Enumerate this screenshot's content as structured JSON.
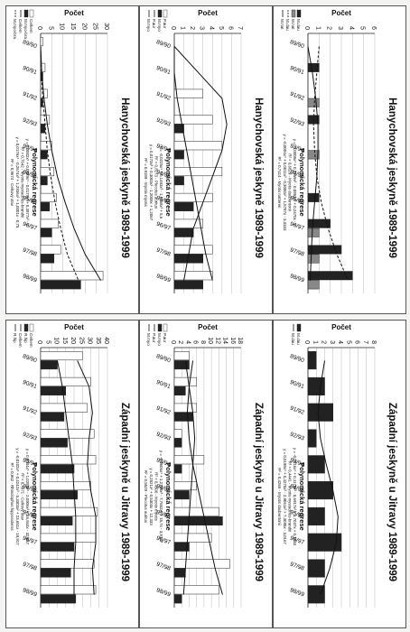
{
  "chart_data": [
    {
      "id": "p1",
      "type": "bar",
      "title": "Hanychovská jeskyně 1989-1999",
      "ylabel": "Počet",
      "ylim": [
        0,
        30
      ],
      "yticks": [
        "0",
        "5",
        "10",
        "15",
        "20",
        "25",
        "30"
      ],
      "categories": [
        "89/90",
        "90/91",
        "91/92",
        "92/93",
        "93/94",
        "94/95",
        "95/96",
        "96/97",
        "97/98",
        "98/99"
      ],
      "series": [
        {
          "name": "Celkem",
          "style": "white",
          "values": [
            1,
            2,
            3,
            4,
            5,
            6,
            7,
            8,
            9,
            28
          ]
        },
        {
          "name": "M.myo-bra",
          "style": "black",
          "values": [
            0,
            1,
            1,
            2,
            3,
            3,
            4,
            5,
            6,
            18
          ]
        }
      ],
      "curves": [
        {
          "name": "Celkem",
          "dash": false,
          "values": [
            0,
            0.5,
            1.5,
            3,
            5,
            7.5,
            11,
            15,
            20,
            27
          ]
        },
        {
          "name": "M.myo-bra",
          "dash": true,
          "values": [
            0,
            0.3,
            1,
            2,
            3,
            4.5,
            6.5,
            9,
            12,
            17
          ]
        }
      ],
      "reg_title": "Polynomická regrese",
      "reg_lines": [
        "y = 0,0002x⁵ + 0,0029x⁴ - 0,0179x³ + 0,3877x² - 1",
        "R² = 0,7642 - Myotis mystacinus-brandtii",
        "y = 0,0176x⁴ - 0,2674x³ + 1,2836x² + 1,0001x - 0,75",
        "R² = 0,9674 - Celkový stav"
      ]
    },
    {
      "id": "p2",
      "type": "bar",
      "title": "Hanychovská jeskyně 1989-1999",
      "ylabel": "Počet",
      "ylim": [
        0,
        7
      ],
      "yticks": [
        "0",
        "1",
        "2",
        "3",
        "4",
        "5",
        "6",
        "7"
      ],
      "categories": [
        "89/90",
        "90/91",
        "91/92",
        "92/93",
        "93/94",
        "94/95",
        "95/96",
        "96/97",
        "97/98",
        "98/99"
      ],
      "series": [
        {
          "name": "P.aur",
          "style": "white",
          "values": [
            0,
            0,
            3,
            4,
            5,
            5,
            4,
            3,
            4,
            4
          ]
        },
        {
          "name": "M.myo",
          "style": "black",
          "values": [
            0,
            0,
            0,
            1,
            1,
            1,
            2,
            2,
            3,
            3
          ]
        }
      ],
      "curves": [
        {
          "name": "P.aur",
          "dash": false,
          "values": [
            0,
            2.5,
            5,
            5.5,
            5,
            4,
            3,
            2,
            1.5,
            1
          ]
        },
        {
          "name": "M.myo",
          "dash": false,
          "values": [
            0,
            0,
            0.3,
            0.8,
            1.3,
            1.8,
            2.3,
            2.8,
            3.3,
            4
          ]
        }
      ],
      "reg_title": "Polynomická regrese",
      "reg_lines": [
        "y = -0,0225x⁴ + 0,1493x³ - 1,7468x² + 5,6",
        "R² = 0,8173 - Plecotus auritus",
        "y = 0,0173x³ + 0,3003x² - 1,2008x + 1,2067",
        "R² = 0,9189 - Myotis myotis"
      ]
    },
    {
      "id": "p3",
      "type": "bar",
      "title": "Hanychovská jeskyně 1989-1999",
      "ylabel": "Počet",
      "ylim": [
        0,
        6
      ],
      "yticks": [
        "0",
        "1",
        "2",
        "3",
        "4",
        "5",
        "6"
      ],
      "categories": [
        "89/90",
        "90/91",
        "91/92",
        "92/93",
        "93/94",
        "94/95",
        "95/96",
        "96/97",
        "97/98",
        "98/99"
      ],
      "series": [
        {
          "name": "M.dau",
          "style": "black",
          "values": [
            0,
            1,
            0,
            1,
            0,
            0,
            1,
            2,
            3,
            4
          ]
        },
        {
          "name": "M.nat",
          "style": "gray",
          "values": [
            0,
            0,
            1,
            0,
            1,
            0,
            0,
            1,
            1,
            1
          ]
        }
      ],
      "curves": [
        {
          "name": "M.dau",
          "dash": true,
          "values": [
            1,
            0.8,
            0.6,
            0.5,
            0.6,
            0.8,
            1.2,
            1.8,
            2.6,
            3.6
          ]
        },
        {
          "name": "M.nat",
          "dash": false,
          "values": [
            0,
            0.4,
            0.7,
            0.9,
            0.9,
            0.8,
            0.6,
            0.4,
            0.3,
            0.2
          ]
        }
      ],
      "reg_title": "Polynomická regrese",
      "reg_lines": [
        "y = -0,0008x⁴ + 0,0159x³ - 0,0952x² + 0,2470x - 2",
        "R² = 0,6829 - Myotis daubentonii",
        "y = -0,0004x⁴ + 0,0011x³ - 0,3000x² + 1,6787x - 3,3333",
        "R² = 0,7414 - Myotis nattereri"
      ]
    },
    {
      "id": "p4",
      "type": "bar",
      "title": "Západní jeskyně u Jitravy 1989-1999",
      "ylabel": "Počet",
      "ylim": [
        0,
        40
      ],
      "yticks": [
        "0",
        "5",
        "10",
        "15",
        "20",
        "25",
        "30",
        "35",
        "40"
      ],
      "categories": [
        "89/90",
        "90/91",
        "91/92",
        "92/93",
        "93/94",
        "94/95",
        "95/96",
        "96/97",
        "97/98",
        "98/99"
      ],
      "series": [
        {
          "name": "Celkem",
          "style": "white",
          "values": [
            25,
            30,
            28,
            32,
            33,
            30,
            34,
            33,
            32,
            33
          ]
        },
        {
          "name": "R.hip",
          "style": "black",
          "values": [
            10,
            15,
            14,
            16,
            20,
            22,
            19,
            20,
            18,
            21
          ]
        }
      ],
      "curves": [
        {
          "name": "Celkem",
          "dash": false,
          "values": [
            22,
            29,
            31,
            29,
            28,
            30,
            33,
            33,
            31,
            32
          ]
        },
        {
          "name": "R.hip",
          "dash": false,
          "values": [
            10,
            13,
            15,
            17,
            19,
            20,
            21,
            21,
            20,
            20
          ]
        }
      ],
      "reg_title": "Polynomická regrese",
      "reg_lines": [
        "y = 0,0044x⁵ + 1,0283x⁴ - 2,0906x³ + 16,844x - 32,667",
        "R² = 0,4971 - Celkový stav",
        "y = -0,0102x⁴ + 0,4242x³ - 5,3303x² + 23,651x - 18,917",
        "R² = 0,862 - Rhinolophus hipposideros"
      ]
    },
    {
      "id": "p5",
      "type": "bar",
      "title": "Západní jeskyně u Jitravy 1989-1999",
      "ylabel": "Počet",
      "ylim": [
        0,
        18
      ],
      "yticks": [
        "0",
        "2",
        "4",
        "6",
        "8",
        "10",
        "12",
        "14",
        "16",
        "18"
      ],
      "categories": [
        "89/90",
        "90/91",
        "91/92",
        "92/93",
        "93/94",
        "94/95",
        "95/96",
        "96/97",
        "97/98",
        "98/99"
      ],
      "series": [
        {
          "name": "P.aur",
          "style": "white",
          "values": [
            4,
            6,
            6,
            2,
            8,
            6,
            12,
            10,
            15,
            12
          ]
        },
        {
          "name": "M.myo",
          "style": "black",
          "values": [
            4,
            3,
            5,
            2,
            2,
            4,
            13,
            4,
            3,
            2
          ]
        }
      ],
      "curves": [
        {
          "name": "P.aur",
          "dash": false,
          "values": [
            5,
            4,
            3.5,
            4,
            5,
            6.5,
            8,
            9.5,
            11,
            13
          ]
        },
        {
          "name": "M.myo",
          "dash": false,
          "values": [
            3,
            4,
            5,
            5.5,
            5,
            4.5,
            4,
            3.5,
            3,
            2.5
          ]
        }
      ],
      "reg_title": "Polynomická regrese",
      "reg_lines": [
        "y = -0,0606x⁴ + 1,2129x³ - 7,7652x² + 15,7x - 3,8167",
        "R² = 0,4500 - Myotis myotis",
        "y = 0,2521x² + 0,5303x + 12,333",
        "R² = 0,5529 - Plecotus auritus"
      ]
    },
    {
      "id": "p6",
      "type": "bar",
      "title": "Západní jeskyně u Jitravy 1989-1999",
      "ylabel": "Počet",
      "ylim": [
        0,
        8
      ],
      "yticks": [
        "0",
        "1",
        "2",
        "3",
        "4",
        "5",
        "6",
        "7",
        "8"
      ],
      "categories": [
        "89/90",
        "90/91",
        "91/92",
        "92/93",
        "93/94",
        "94/95",
        "95/96",
        "96/97",
        "97/98",
        "98/99"
      ],
      "series": [
        {
          "name": "M.dau",
          "style": "black",
          "values": [
            1,
            2,
            3,
            1,
            2,
            3,
            2,
            4,
            2,
            2
          ]
        }
      ],
      "curves": [
        {
          "name": "M.dau",
          "dash": false,
          "values": [
            2,
            1.5,
            1.2,
            1.5,
            2.2,
            3,
            3.6,
            3.4,
            2.6,
            1.5
          ]
        }
      ],
      "reg_title": "Polynomická regrese",
      "reg_lines": [
        "y = -0,0016x⁴ + 0,1176x³ - 0,6917x² + 1,7037x + 0,7833",
        "R² = 0,4441 - Myotis mystacinus-brandtii",
        "y = 0,0199x⁴ + 0,4275x³ - 2,9061x² + 7,3095x - 3,0167",
        "R² = 0,4266 - Myotis daubentonii"
      ]
    }
  ]
}
